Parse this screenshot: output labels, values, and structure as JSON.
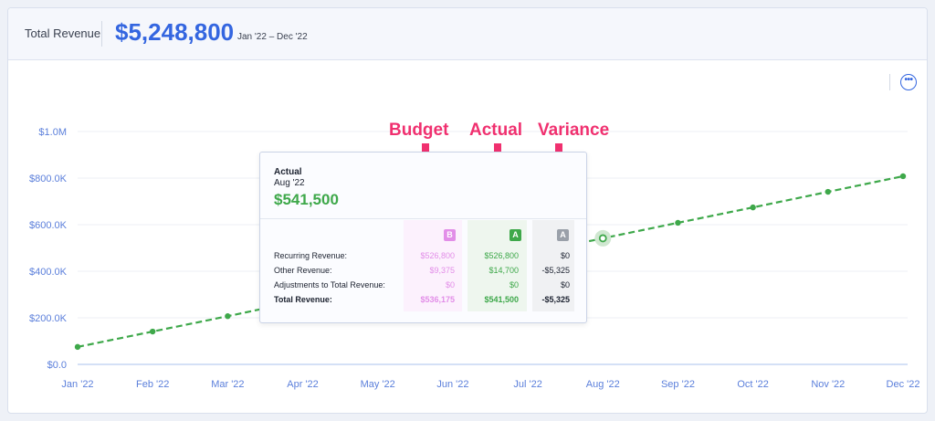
{
  "header": {
    "title": "Total Revenue",
    "amount": "$5,248,800",
    "range": "Jan '22 – Dec '22"
  },
  "menu": {
    "icon": "more-icon",
    "glyph": "•••"
  },
  "callouts": {
    "budget": "Budget",
    "actual": "Actual",
    "variance": "Variance",
    "color": "#f0306f"
  },
  "tooltip": {
    "label": "Actual",
    "month": "Aug '22",
    "value": "$541,500",
    "badges": {
      "budget": "B",
      "actual": "A",
      "variance": "A"
    },
    "rows": [
      {
        "label": "Recurring Revenue:",
        "budget": "$526,800",
        "actual": "$526,800",
        "variance": "$0"
      },
      {
        "label": "Other Revenue:",
        "budget": "$9,375",
        "actual": "$14,700",
        "variance": "-$5,325"
      },
      {
        "label": "Adjustments to Total Revenue:",
        "budget": "$0",
        "actual": "$0",
        "variance": "$0"
      },
      {
        "label": "Total Revenue:",
        "budget": "$536,175",
        "actual": "$541,500",
        "variance": "-$5,325"
      }
    ]
  },
  "colors": {
    "accent": "#3466e0",
    "line": "#3ea84a",
    "budget": "#e28ee8",
    "axis": "#5b7fdb"
  },
  "chart_data": {
    "type": "line",
    "categories": [
      "Jan '22",
      "Feb '22",
      "Mar '22",
      "Apr '22",
      "May '22",
      "Jun '22",
      "Jul '22",
      "Aug '22",
      "Sep '22",
      "Oct '22",
      "Nov '22",
      "Dec '22"
    ],
    "series": [
      {
        "values": [
          75000,
          141000,
          207000,
          275000,
          341000,
          408000,
          474000,
          541500,
          608000,
          674000,
          741000,
          808000
        ]
      }
    ],
    "yticks": [
      "$0.0",
      "$200.0K",
      "$400.0K",
      "$600.0K",
      "$800.0K",
      "$1.0M"
    ],
    "ylim": [
      0,
      1000000
    ],
    "highlight_index": 7,
    "grid": true,
    "line_style": "dashed"
  }
}
